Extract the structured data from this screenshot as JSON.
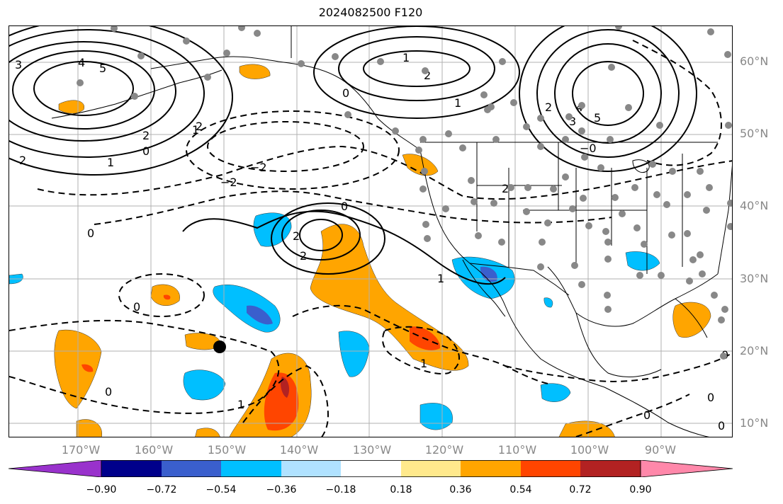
{
  "title": "2024082500 F120",
  "lat_labels": [
    "60°N",
    "50°N",
    "40°N",
    "30°N",
    "20°N",
    "10°N"
  ],
  "lon_labels": [
    "170°W",
    "160°W",
    "150°W",
    "140°W",
    "130°W",
    "120°W",
    "110°W",
    "100°W",
    "90°W"
  ],
  "colorbar": {
    "ticks": [
      "−0.90",
      "−0.72",
      "−0.54",
      "−0.36",
      "−0.18",
      "0.18",
      "0.36",
      "0.54",
      "0.72",
      "0.90"
    ],
    "colors": [
      "#9932cc",
      "#00008b",
      "#3a5fcd",
      "#00bfff",
      "#b0e2ff",
      "#ffffff",
      "#ffe98c",
      "#ffa500",
      "#ff4500",
      "#b22222",
      "#ff88aa"
    ]
  },
  "contour_labels": [
    "3",
    "4",
    "5",
    "2",
    "1",
    "0",
    "2",
    "2",
    "1",
    "0",
    "0",
    "−2",
    "−2",
    "2",
    "2",
    "0",
    "1",
    "0",
    "1",
    "2",
    "3",
    "4",
    "5",
    "2",
    "1",
    "−0",
    "0",
    "0",
    "0",
    "0",
    "0",
    "1",
    "1",
    "2"
  ]
}
